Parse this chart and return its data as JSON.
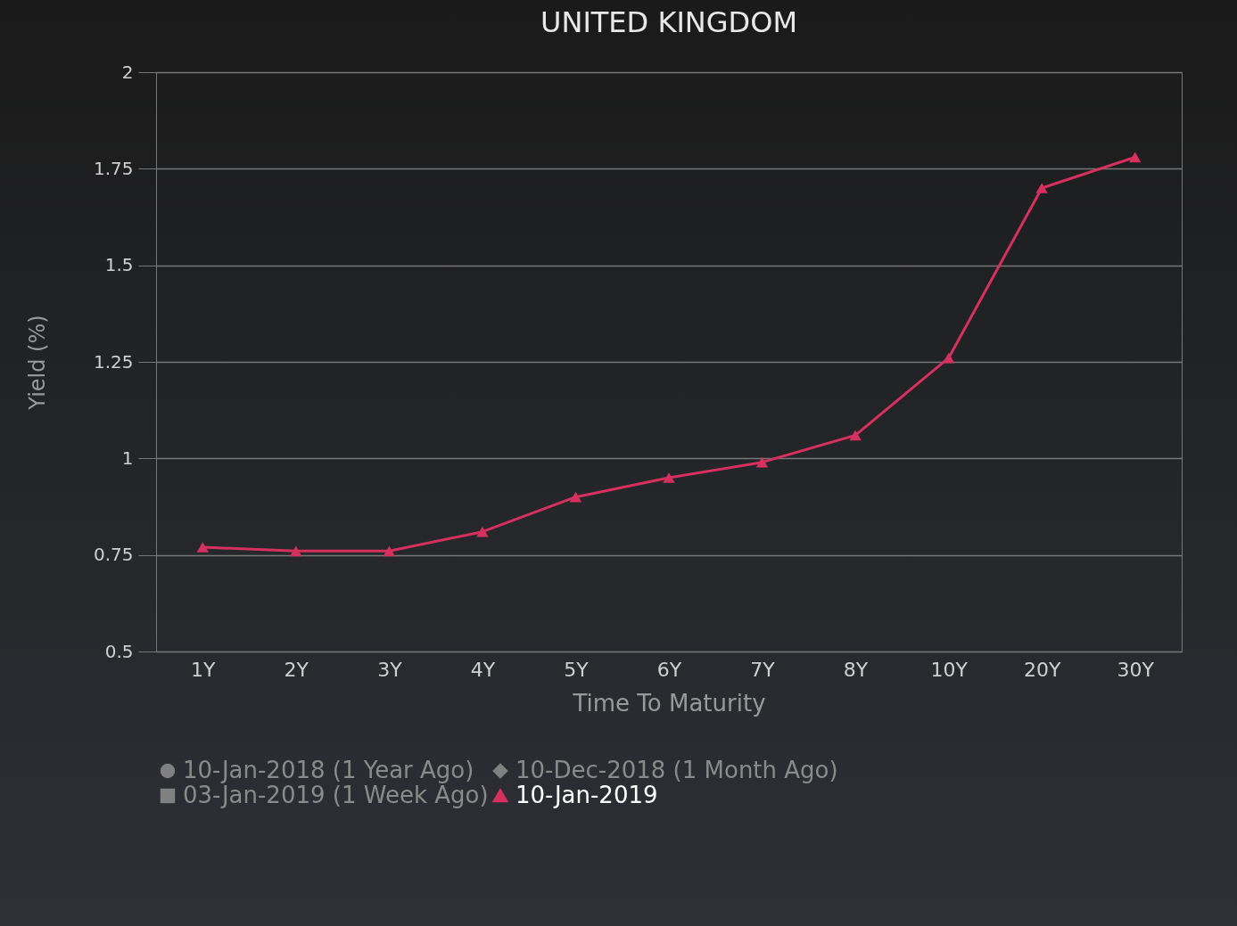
{
  "chart_data": {
    "type": "line",
    "title": "UNITED KINGDOM",
    "xlabel": "Time To Maturity",
    "ylabel": "Yield (%)",
    "categories": [
      "1Y",
      "2Y",
      "3Y",
      "4Y",
      "5Y",
      "6Y",
      "7Y",
      "8Y",
      "10Y",
      "20Y",
      "30Y"
    ],
    "series": [
      {
        "name": "10-Jan-2018 (1 Year Ago)",
        "color": "#808080",
        "marker": "circle",
        "values": [
          null,
          null,
          null,
          null,
          null,
          null,
          null,
          null,
          null,
          null,
          null
        ]
      },
      {
        "name": "10-Dec-2018 (1 Month Ago)",
        "color": "#808080",
        "marker": "diamond",
        "values": [
          null,
          null,
          null,
          null,
          null,
          null,
          null,
          null,
          null,
          null,
          null
        ]
      },
      {
        "name": "03-Jan-2019 (1 Week Ago)",
        "color": "#808080",
        "marker": "square",
        "values": [
          null,
          null,
          null,
          null,
          null,
          null,
          null,
          null,
          null,
          null,
          null
        ]
      },
      {
        "name": "10-Jan-2019",
        "color": "#d6305f",
        "marker": "triangle",
        "values": [
          0.77,
          0.76,
          0.76,
          0.81,
          0.9,
          0.95,
          0.99,
          1.06,
          1.26,
          1.7,
          1.78
        ]
      }
    ],
    "ylim": [
      0.5,
      2
    ],
    "yticks": [
      0.5,
      0.75,
      1,
      1.25,
      1.5,
      1.75,
      2
    ],
    "grid": "y",
    "legend": "bottom",
    "line_style": "solid"
  }
}
